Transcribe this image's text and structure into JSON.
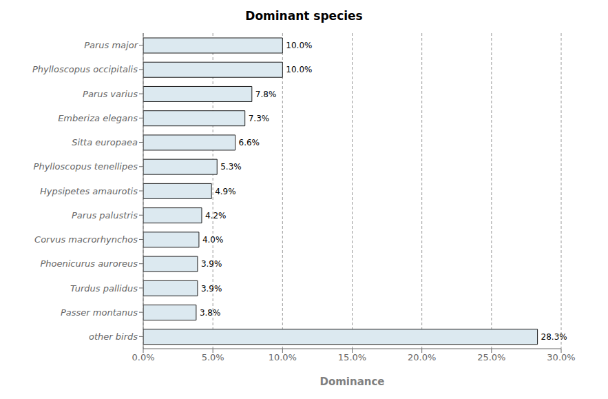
{
  "chart_data": {
    "type": "bar",
    "title": "Dominant species",
    "xlabel": "Dominance",
    "orientation": "horizontal",
    "categories": [
      "other birds",
      "Passer montanus",
      "Turdus pallidus",
      "Phoenicurus auroreus",
      "Corvus macrorhynchos",
      "Parus palustris",
      "Hypsipetes amaurotis",
      "Phylloscopus tenellipes",
      "Sitta europaea",
      "Emberiza elegans",
      "Parus varius",
      "Phylloscopus occipitalis",
      "Parus major"
    ],
    "values": [
      28.3,
      3.8,
      3.9,
      3.9,
      4.0,
      4.2,
      4.9,
      5.3,
      6.6,
      7.3,
      7.8,
      10.0,
      10.0
    ],
    "value_labels": [
      "28.3%",
      "3.8%",
      "3.9%",
      "3.9%",
      "4.0%",
      "4.2%",
      "4.9%",
      "5.3%",
      "6.6%",
      "7.3%",
      "7.8%",
      "10.0%",
      "10.0%"
    ],
    "data_labels": true,
    "color": "#dce9f0",
    "xlim": [
      0,
      30
    ],
    "xticks": [
      {
        "value": 0,
        "label": "0.0%"
      },
      {
        "value": 5,
        "label": "5.0%"
      },
      {
        "value": 10,
        "label": "10.0%"
      },
      {
        "value": 15,
        "label": "15.0%"
      },
      {
        "value": 20,
        "label": "20.0%"
      },
      {
        "value": 25,
        "label": "25.0%"
      },
      {
        "value": 30,
        "label": "30.0%"
      }
    ],
    "grid": true
  }
}
